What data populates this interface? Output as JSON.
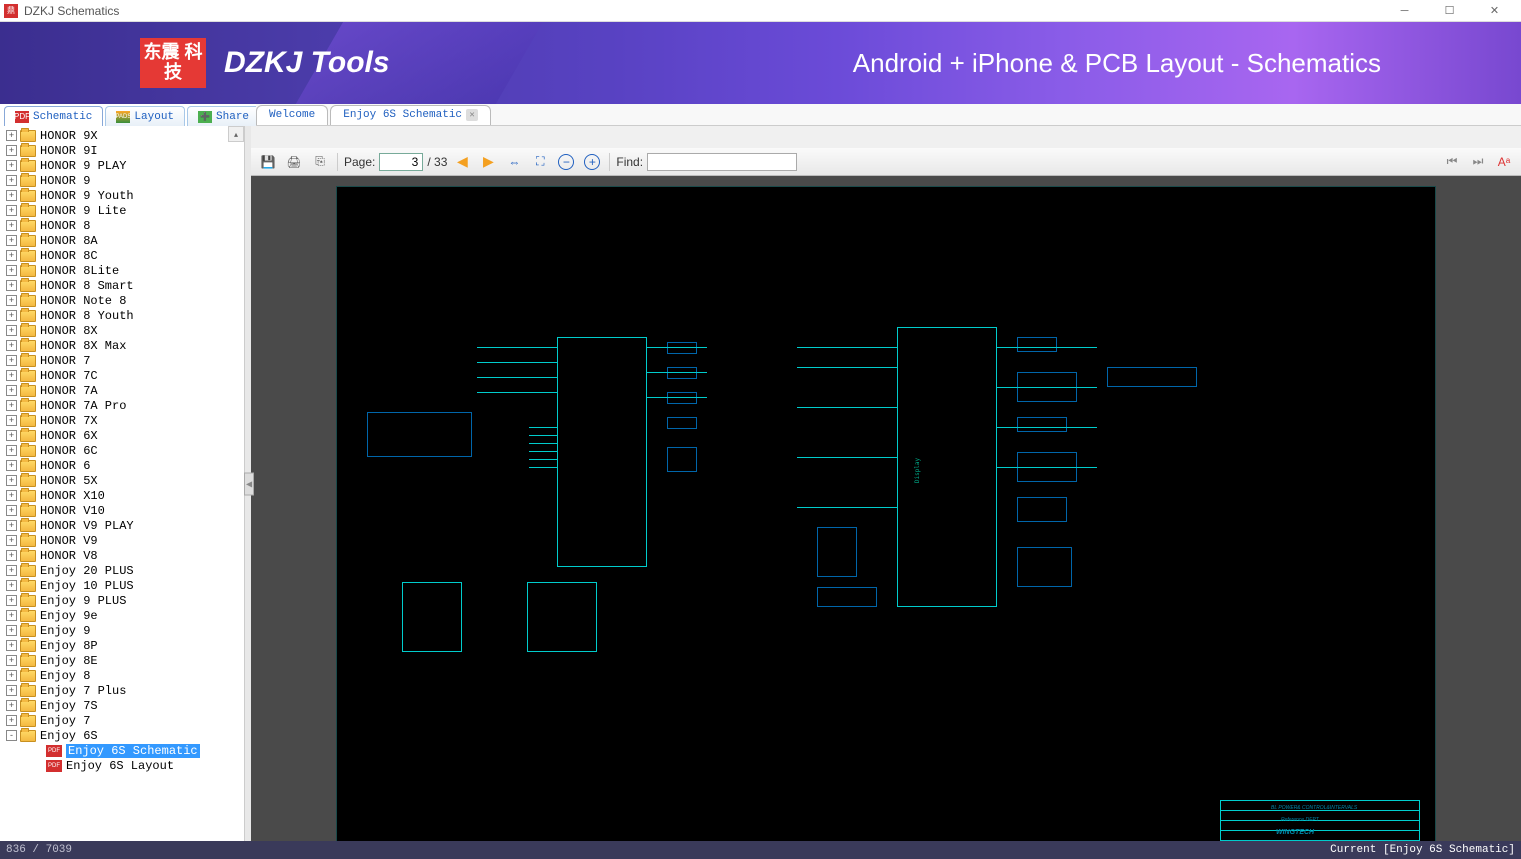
{
  "window": {
    "title": "DZKJ Schematics"
  },
  "banner": {
    "logo_text": "东震\n科技",
    "title": "DZKJ Tools",
    "subtitle": "Android + iPhone & PCB Layout - Schematics"
  },
  "main_tabs": [
    {
      "icon": "pdf",
      "label": "Schematic"
    },
    {
      "icon": "pads",
      "label": "Layout"
    },
    {
      "icon": "share",
      "label": "Share"
    }
  ],
  "doc_tabs": [
    {
      "label": "Welcome",
      "closable": false
    },
    {
      "label": "Enjoy 6S Schematic",
      "closable": true
    }
  ],
  "toolbar": {
    "page_label": "Page:",
    "page_current": "3",
    "page_total": "/ 33",
    "find_label": "Find:",
    "find_value": ""
  },
  "tree": [
    {
      "label": "HONOR 9X",
      "type": "folder",
      "expand": "+"
    },
    {
      "label": "HONOR 9I",
      "type": "folder",
      "expand": "+"
    },
    {
      "label": "HONOR 9 PLAY",
      "type": "folder",
      "expand": "+"
    },
    {
      "label": "HONOR 9",
      "type": "folder",
      "expand": "+"
    },
    {
      "label": "HONOR 9 Youth",
      "type": "folder",
      "expand": "+"
    },
    {
      "label": "HONOR 9 Lite",
      "type": "folder",
      "expand": "+"
    },
    {
      "label": "HONOR 8",
      "type": "folder",
      "expand": "+"
    },
    {
      "label": "HONOR 8A",
      "type": "folder",
      "expand": "+"
    },
    {
      "label": "HONOR 8C",
      "type": "folder",
      "expand": "+"
    },
    {
      "label": "HONOR 8Lite",
      "type": "folder",
      "expand": "+"
    },
    {
      "label": "HONOR 8 Smart",
      "type": "folder",
      "expand": "+"
    },
    {
      "label": "HONOR Note 8",
      "type": "folder",
      "expand": "+"
    },
    {
      "label": "HONOR 8 Youth",
      "type": "folder",
      "expand": "+"
    },
    {
      "label": "HONOR 8X",
      "type": "folder",
      "expand": "+"
    },
    {
      "label": "HONOR 8X Max",
      "type": "folder",
      "expand": "+"
    },
    {
      "label": "HONOR 7",
      "type": "folder",
      "expand": "+"
    },
    {
      "label": "HONOR 7C",
      "type": "folder",
      "expand": "+"
    },
    {
      "label": "HONOR 7A",
      "type": "folder",
      "expand": "+"
    },
    {
      "label": "HONOR 7A Pro",
      "type": "folder",
      "expand": "+"
    },
    {
      "label": "HONOR 7X",
      "type": "folder",
      "expand": "+"
    },
    {
      "label": "HONOR 6X",
      "type": "folder",
      "expand": "+"
    },
    {
      "label": "HONOR 6C",
      "type": "folder",
      "expand": "+"
    },
    {
      "label": "HONOR 6",
      "type": "folder",
      "expand": "+"
    },
    {
      "label": "HONOR 5X",
      "type": "folder",
      "expand": "+"
    },
    {
      "label": "HONOR X10",
      "type": "folder",
      "expand": "+"
    },
    {
      "label": "HONOR V10",
      "type": "folder",
      "expand": "+"
    },
    {
      "label": "HONOR V9 PLAY",
      "type": "folder",
      "expand": "+"
    },
    {
      "label": "HONOR V9",
      "type": "folder",
      "expand": "+"
    },
    {
      "label": "HONOR V8",
      "type": "folder",
      "expand": "+"
    },
    {
      "label": "Enjoy 20 PLUS",
      "type": "folder",
      "expand": "+"
    },
    {
      "label": "Enjoy 10 PLUS",
      "type": "folder",
      "expand": "+"
    },
    {
      "label": "Enjoy 9 PLUS",
      "type": "folder",
      "expand": "+"
    },
    {
      "label": "Enjoy 9e",
      "type": "folder",
      "expand": "+"
    },
    {
      "label": "Enjoy 9",
      "type": "folder",
      "expand": "+"
    },
    {
      "label": "Enjoy 8P",
      "type": "folder",
      "expand": "+"
    },
    {
      "label": "Enjoy 8E",
      "type": "folder",
      "expand": "+"
    },
    {
      "label": "Enjoy 8",
      "type": "folder",
      "expand": "+"
    },
    {
      "label": "Enjoy 7 Plus",
      "type": "folder",
      "expand": "+"
    },
    {
      "label": "Enjoy 7S",
      "type": "folder",
      "expand": "+"
    },
    {
      "label": "Enjoy 7",
      "type": "folder",
      "expand": "+"
    },
    {
      "label": "Enjoy 6S",
      "type": "folder",
      "expand": "-"
    },
    {
      "label": "Enjoy 6S Schematic",
      "type": "pdf",
      "child": true,
      "selected": true
    },
    {
      "label": "Enjoy 6S Layout",
      "type": "pdf",
      "child": true
    }
  ],
  "schematic": {
    "label_display": "Display",
    "title_block": {
      "line1": "BL POWER& CONTROL&INTERVALS",
      "line2": "Reference DEPT",
      "brand": "WINGTECH"
    },
    "colors": {
      "bg": "#000000",
      "trace": "#00cccc",
      "component": "#0066aa",
      "text": "#00aa88"
    }
  },
  "status": {
    "left": "836 / 7039",
    "right": "Current [Enjoy 6S Schematic]"
  }
}
